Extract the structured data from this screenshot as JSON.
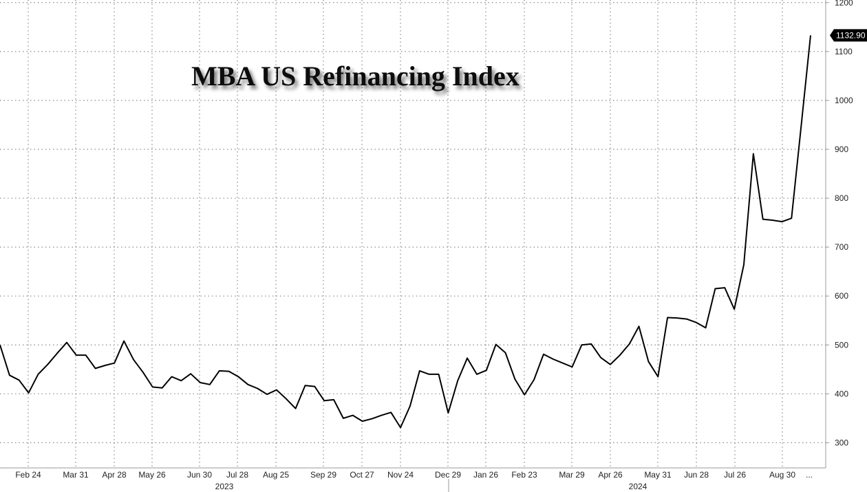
{
  "chart_data": {
    "type": "line",
    "title": "MBA US Refinancing Index",
    "xlabel": "",
    "ylabel": "",
    "ylim": [
      250,
      1200
    ],
    "y_ticks": [
      300,
      400,
      500,
      600,
      700,
      800,
      900,
      1000,
      1100,
      1200
    ],
    "x_tick_labels": [
      "Feb 24",
      "Mar 31",
      "Apr 28",
      "May 26",
      "Jun 30",
      "Jul 28",
      "Aug 25",
      "Sep 29",
      "Oct 27",
      "Nov 24",
      "Dec 29",
      "Jan 26",
      "Feb 23",
      "Mar 29",
      "Apr 26",
      "May 31",
      "Jun 28",
      "Jul 26",
      "Aug 30",
      "..."
    ],
    "year_labels": [
      "2023",
      "2024"
    ],
    "last_value_label": "1132.90",
    "grid": true,
    "series": [
      {
        "values": [
          500,
          438,
          428,
          402,
          440,
          460,
          483,
          505,
          479,
          479,
          452,
          458,
          463,
          508,
          470,
          444,
          414,
          412,
          435,
          427,
          441,
          423,
          419,
          447,
          446,
          435,
          419,
          411,
          399,
          408,
          390,
          370,
          417,
          415,
          386,
          388,
          350,
          356,
          344,
          349,
          356,
          362,
          331,
          375,
          447,
          440,
          440,
          361,
          427,
          473,
          440,
          448,
          501,
          484,
          430,
          398,
          429,
          481,
          471,
          463,
          455,
          500,
          502,
          474,
          460,
          479,
          502,
          538,
          466,
          435,
          556,
          555,
          553,
          546,
          535,
          615,
          617,
          573,
          664,
          891,
          757,
          755,
          752,
          759,
          945,
          1133
        ]
      }
    ]
  },
  "colors": {
    "line": "#000000",
    "grid": "#888888",
    "label_bg": "#000000",
    "label_text": "#ffffff"
  }
}
